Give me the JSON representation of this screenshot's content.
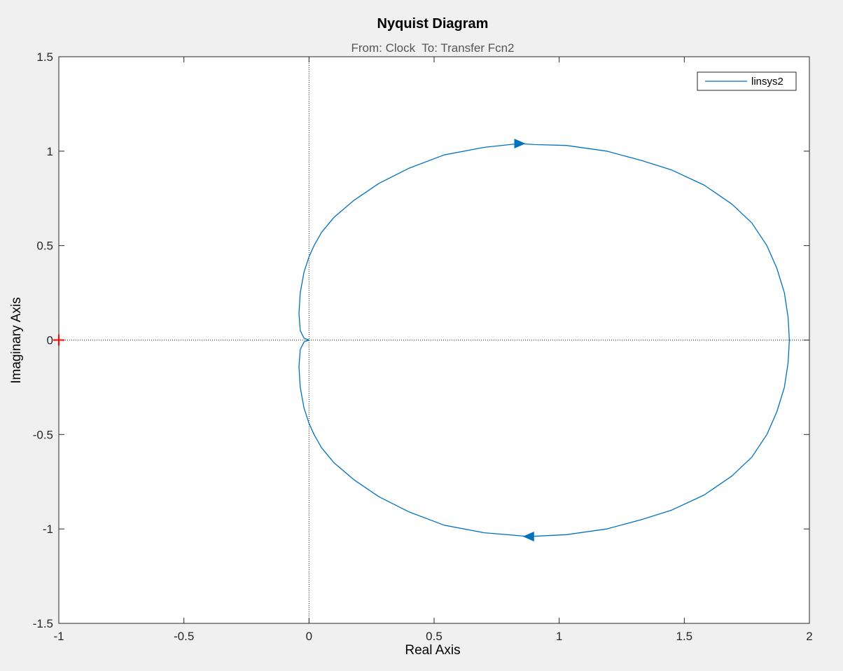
{
  "chart_data": {
    "type": "line",
    "title": "Nyquist Diagram",
    "subtitle": "From: Clock  To: Transfer Fcn2",
    "xlabel": "Real Axis",
    "ylabel": "Imaginary Axis",
    "xlim": [
      -1,
      2
    ],
    "ylim": [
      -1.5,
      1.5
    ],
    "xticks": [
      -1,
      -0.5,
      0,
      0.5,
      1,
      1.5,
      2
    ],
    "xtick_labels": [
      "-1",
      "-0.5",
      "0",
      "0.5",
      "1",
      "1.5",
      "2"
    ],
    "yticks": [
      1.5,
      1,
      0.5,
      0,
      -0.5,
      -1,
      -1.5
    ],
    "ytick_labels": [
      "1.5",
      "1",
      "0.5",
      "0",
      "-0.5",
      "-1",
      "-1.5"
    ],
    "grid": false,
    "legend_position": "top-right",
    "critical_point": {
      "x": -1,
      "y": 0,
      "marker": "+",
      "color": "#ff0000"
    },
    "series": [
      {
        "name": "linsys2",
        "color": "#0072bd",
        "points": [
          [
            1.92,
            0.0
          ],
          [
            1.915,
            0.12
          ],
          [
            1.9,
            0.25
          ],
          [
            1.87,
            0.38
          ],
          [
            1.83,
            0.5
          ],
          [
            1.77,
            0.62
          ],
          [
            1.69,
            0.72
          ],
          [
            1.58,
            0.82
          ],
          [
            1.45,
            0.9
          ],
          [
            1.33,
            0.95
          ],
          [
            1.19,
            1.0
          ],
          [
            1.03,
            1.03
          ],
          [
            0.9,
            1.035
          ],
          [
            0.84,
            1.04
          ],
          [
            0.7,
            1.02
          ],
          [
            0.54,
            0.98
          ],
          [
            0.4,
            0.91
          ],
          [
            0.28,
            0.83
          ],
          [
            0.18,
            0.74
          ],
          [
            0.1,
            0.65
          ],
          [
            0.05,
            0.57
          ],
          [
            0.02,
            0.5
          ],
          [
            0.0,
            0.44
          ],
          [
            -0.02,
            0.36
          ],
          [
            -0.035,
            0.25
          ],
          [
            -0.04,
            0.14
          ],
          [
            -0.035,
            0.05
          ],
          [
            -0.02,
            0.01
          ],
          [
            0.0,
            0.0
          ],
          [
            -0.02,
            -0.01
          ],
          [
            -0.035,
            -0.05
          ],
          [
            -0.04,
            -0.14
          ],
          [
            -0.035,
            -0.25
          ],
          [
            -0.02,
            -0.36
          ],
          [
            0.0,
            -0.44
          ],
          [
            0.02,
            -0.5
          ],
          [
            0.05,
            -0.57
          ],
          [
            0.1,
            -0.65
          ],
          [
            0.18,
            -0.74
          ],
          [
            0.28,
            -0.83
          ],
          [
            0.4,
            -0.91
          ],
          [
            0.54,
            -0.98
          ],
          [
            0.7,
            -1.02
          ],
          [
            0.88,
            -1.04
          ],
          [
            1.03,
            -1.03
          ],
          [
            1.19,
            -1.0
          ],
          [
            1.33,
            -0.95
          ],
          [
            1.45,
            -0.9
          ],
          [
            1.58,
            -0.82
          ],
          [
            1.69,
            -0.72
          ],
          [
            1.77,
            -0.62
          ],
          [
            1.83,
            -0.5
          ],
          [
            1.87,
            -0.38
          ],
          [
            1.9,
            -0.25
          ],
          [
            1.915,
            -0.12
          ],
          [
            1.92,
            0.0
          ]
        ],
        "arrows": [
          {
            "x": 0.84,
            "y": 1.04,
            "direction": "right"
          },
          {
            "x": 0.88,
            "y": -1.04,
            "direction": "left"
          }
        ]
      }
    ]
  }
}
